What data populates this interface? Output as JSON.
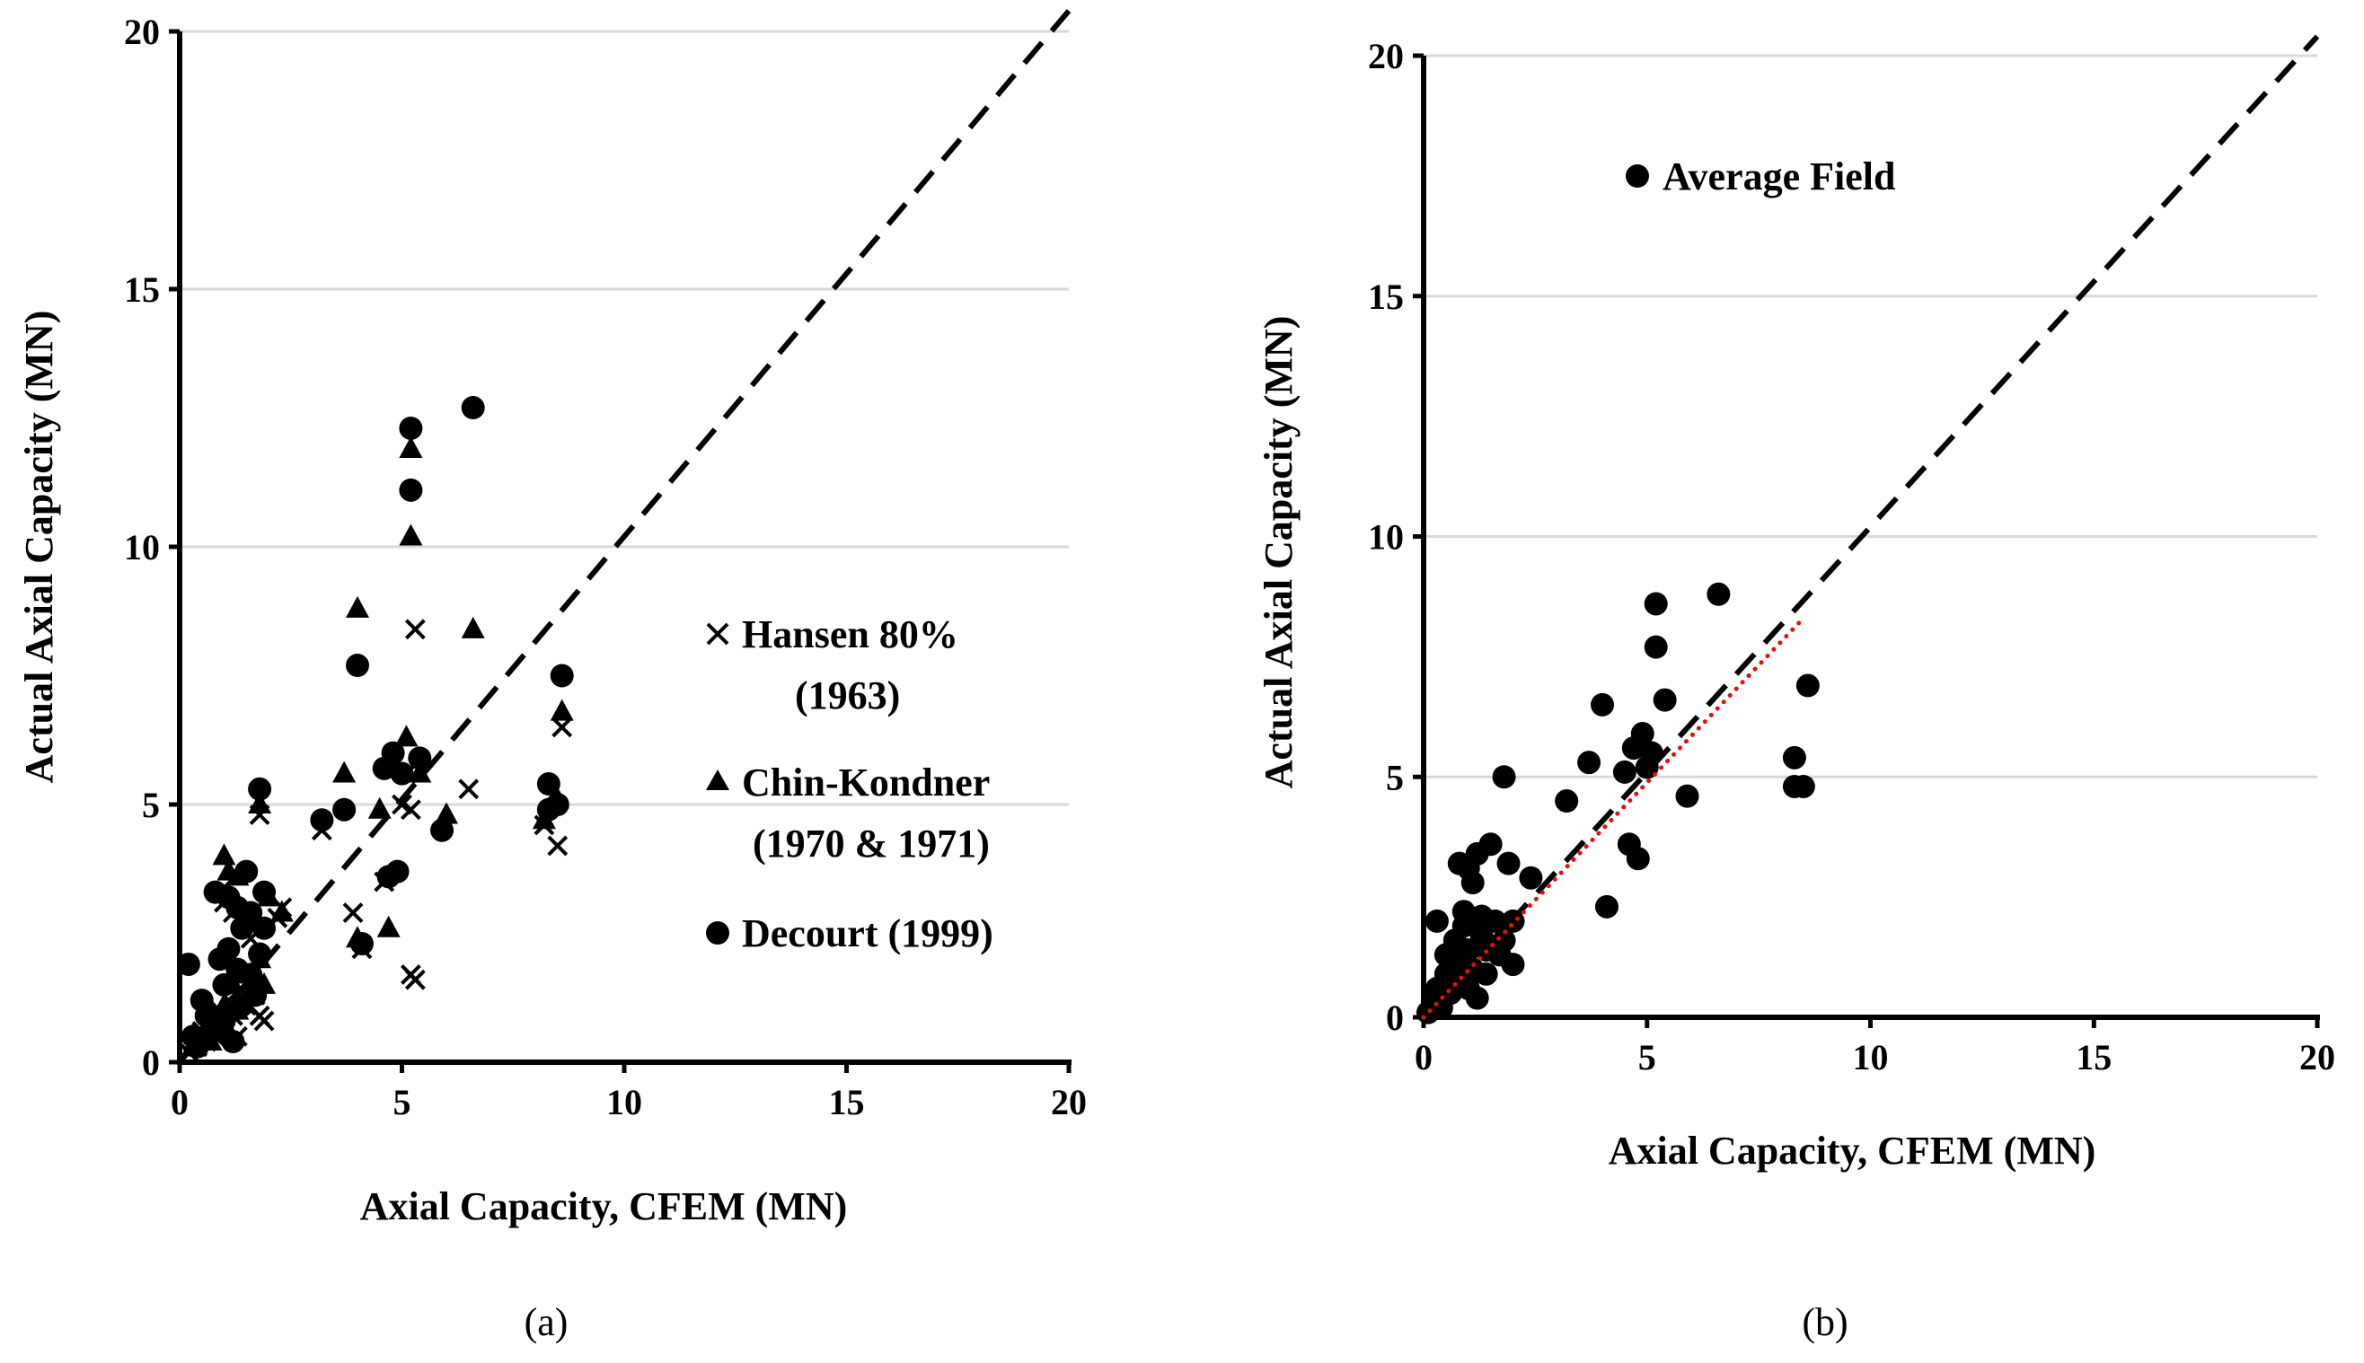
{
  "panels": [
    {
      "caption": "(a)",
      "xlabel": "Axial Capacity, CFEM (MN)",
      "ylabel": "Actual Axial Capacity (MN)",
      "legend": [
        {
          "marker": "cross",
          "lines": [
            "Hansen 80%",
            "(1963)"
          ]
        },
        {
          "marker": "triangle",
          "lines": [
            "Chin-Kondner",
            "(1970 & 1971)"
          ]
        },
        {
          "marker": "circle",
          "lines": [
            "Decourt (1999)"
          ]
        }
      ]
    },
    {
      "caption": "(b)",
      "xlabel": "Axial Capacity, CFEM (MN)",
      "ylabel": "Actual Axial Capacity (MN)",
      "legend": [
        {
          "marker": "circle",
          "lines": [
            "Average Field"
          ]
        }
      ]
    }
  ],
  "colors": {
    "marker": "#000000",
    "reference_line": "#000000",
    "fit_line": "#e01010",
    "grid": "#d9d9d9"
  },
  "chart_data": [
    {
      "type": "scatter",
      "xlim": [
        0,
        20
      ],
      "ylim": [
        0,
        20
      ],
      "xticks": [
        0,
        5,
        10,
        15,
        20
      ],
      "yticks": [
        0,
        5,
        10,
        15,
        20
      ],
      "grid": "horizontal",
      "legend_position": "right-middle",
      "reference_line": {
        "style": "dashed",
        "x": [
          0,
          20
        ],
        "y": [
          0,
          20.4
        ]
      },
      "series": [
        {
          "name": "Hansen 80% (1963)",
          "marker": "cross",
          "points": [
            [
              0.2,
              0.2
            ],
            [
              0.3,
              0.4
            ],
            [
              0.4,
              0.3
            ],
            [
              0.5,
              0.6
            ],
            [
              0.6,
              0.4
            ],
            [
              0.7,
              0.8
            ],
            [
              0.8,
              0.5
            ],
            [
              0.9,
              1.0
            ],
            [
              1.0,
              0.7
            ],
            [
              1.1,
              1.2
            ],
            [
              1.2,
              0.9
            ],
            [
              1.3,
              0.5
            ],
            [
              1.4,
              1.4
            ],
            [
              1.5,
              1.1
            ],
            [
              1.6,
              1.6
            ],
            [
              1.7,
              1.3
            ],
            [
              1.8,
              0.9
            ],
            [
              1.9,
              0.8
            ],
            [
              1.0,
              3.1
            ],
            [
              1.2,
              2.9
            ],
            [
              0.9,
              3.3
            ],
            [
              1.6,
              2.4
            ],
            [
              1.8,
              4.8
            ],
            [
              2.2,
              2.8
            ],
            [
              2.3,
              3.0
            ],
            [
              3.2,
              4.5
            ],
            [
              3.9,
              2.9
            ],
            [
              4.1,
              2.2
            ],
            [
              4.6,
              3.5
            ],
            [
              5.0,
              5.0
            ],
            [
              5.1,
              5.6
            ],
            [
              5.2,
              4.9
            ],
            [
              5.2,
              1.7
            ],
            [
              5.3,
              1.6
            ],
            [
              5.3,
              8.4
            ],
            [
              6.5,
              5.3
            ],
            [
              8.2,
              4.6
            ],
            [
              8.5,
              4.2
            ],
            [
              8.6,
              6.5
            ]
          ]
        },
        {
          "name": "Chin-Kondner (1970 & 1971)",
          "marker": "triangle",
          "points": [
            [
              0.3,
              0.3
            ],
            [
              0.5,
              0.5
            ],
            [
              0.7,
              0.4
            ],
            [
              0.8,
              0.9
            ],
            [
              1.0,
              1.1
            ],
            [
              1.1,
              0.6
            ],
            [
              1.2,
              1.5
            ],
            [
              1.3,
              1.0
            ],
            [
              1.5,
              1.7
            ],
            [
              1.6,
              1.3
            ],
            [
              1.8,
              2.0
            ],
            [
              1.9,
              1.5
            ],
            [
              1.0,
              4.0
            ],
            [
              1.1,
              3.7
            ],
            [
              1.3,
              3.6
            ],
            [
              1.8,
              5.0
            ],
            [
              2.0,
              3.2
            ],
            [
              2.3,
              2.9
            ],
            [
              3.7,
              5.6
            ],
            [
              4.0,
              8.8
            ],
            [
              4.0,
              2.4
            ],
            [
              4.5,
              4.9
            ],
            [
              4.7,
              2.6
            ],
            [
              4.8,
              5.7
            ],
            [
              5.1,
              6.3
            ],
            [
              5.2,
              11.9
            ],
            [
              5.2,
              10.2
            ],
            [
              5.4,
              5.6
            ],
            [
              6.0,
              4.8
            ],
            [
              6.6,
              8.4
            ],
            [
              8.2,
              4.7
            ],
            [
              8.5,
              5.1
            ],
            [
              8.6,
              6.8
            ]
          ]
        },
        {
          "name": "Decourt (1999)",
          "marker": "circle",
          "points": [
            [
              0.2,
              1.9
            ],
            [
              0.3,
              0.5
            ],
            [
              0.4,
              0.3
            ],
            [
              0.5,
              1.2
            ],
            [
              0.6,
              0.9
            ],
            [
              0.7,
              0.6
            ],
            [
              0.8,
              3.3
            ],
            [
              0.9,
              2.0
            ],
            [
              1.0,
              1.5
            ],
            [
              1.0,
              0.8
            ],
            [
              1.1,
              2.2
            ],
            [
              1.1,
              3.2
            ],
            [
              1.2,
              0.4
            ],
            [
              1.3,
              1.8
            ],
            [
              1.3,
              3.0
            ],
            [
              1.4,
              2.6
            ],
            [
              1.4,
              1.1
            ],
            [
              1.5,
              3.7
            ],
            [
              1.6,
              1.7
            ],
            [
              1.6,
              2.9
            ],
            [
              1.7,
              1.3
            ],
            [
              1.8,
              2.1
            ],
            [
              1.8,
              5.3
            ],
            [
              1.9,
              3.3
            ],
            [
              1.9,
              2.6
            ],
            [
              3.2,
              4.7
            ],
            [
              3.7,
              4.9
            ],
            [
              4.0,
              7.7
            ],
            [
              4.1,
              2.3
            ],
            [
              4.6,
              5.7
            ],
            [
              4.7,
              3.6
            ],
            [
              4.8,
              6.0
            ],
            [
              4.9,
              3.7
            ],
            [
              5.0,
              5.6
            ],
            [
              5.2,
              12.3
            ],
            [
              5.2,
              11.1
            ],
            [
              5.4,
              5.9
            ],
            [
              5.9,
              4.5
            ],
            [
              6.6,
              12.7
            ],
            [
              8.3,
              4.9
            ],
            [
              8.3,
              5.4
            ],
            [
              8.5,
              5.0
            ],
            [
              8.6,
              7.5
            ]
          ]
        }
      ]
    },
    {
      "type": "scatter",
      "xlim": [
        0,
        20
      ],
      "ylim": [
        0,
        20
      ],
      "xticks": [
        0,
        5,
        10,
        15,
        20
      ],
      "yticks": [
        0,
        5,
        10,
        15,
        20
      ],
      "grid": "horizontal",
      "legend_position": "top-left",
      "reference_line": {
        "style": "dashed",
        "x": [
          0,
          20
        ],
        "y": [
          0,
          20.4
        ]
      },
      "fit_line": {
        "style": "dotted",
        "x": [
          0,
          8.5
        ],
        "y": [
          0,
          8.3
        ]
      },
      "series": [
        {
          "name": "Average Field",
          "marker": "circle",
          "points": [
            [
              0.1,
              0.1
            ],
            [
              0.2,
              0.3
            ],
            [
              0.3,
              2.0
            ],
            [
              0.3,
              0.6
            ],
            [
              0.4,
              0.2
            ],
            [
              0.5,
              0.9
            ],
            [
              0.5,
              1.3
            ],
            [
              0.6,
              0.5
            ],
            [
              0.7,
              1.6
            ],
            [
              0.7,
              0.8
            ],
            [
              0.8,
              3.2
            ],
            [
              0.8,
              1.1
            ],
            [
              0.9,
              2.2
            ],
            [
              0.9,
              1.9
            ],
            [
              1.0,
              1.4
            ],
            [
              1.0,
              3.1
            ],
            [
              1.0,
              0.6
            ],
            [
              1.1,
              2.8
            ],
            [
              1.1,
              1.0
            ],
            [
              1.2,
              3.4
            ],
            [
              1.2,
              0.4
            ],
            [
              1.3,
              1.7
            ],
            [
              1.3,
              2.1
            ],
            [
              1.4,
              0.9
            ],
            [
              1.4,
              1.4
            ],
            [
              1.5,
              3.6
            ],
            [
              1.6,
              2.0
            ],
            [
              1.7,
              1.3
            ],
            [
              1.8,
              1.6
            ],
            [
              1.8,
              5.0
            ],
            [
              1.9,
              3.2
            ],
            [
              2.0,
              1.1
            ],
            [
              2.0,
              2.0
            ],
            [
              2.4,
              2.9
            ],
            [
              3.2,
              4.5
            ],
            [
              3.7,
              5.3
            ],
            [
              4.0,
              6.5
            ],
            [
              4.1,
              2.3
            ],
            [
              4.5,
              5.1
            ],
            [
              4.6,
              3.6
            ],
            [
              4.7,
              5.6
            ],
            [
              4.8,
              3.3
            ],
            [
              4.9,
              5.9
            ],
            [
              5.0,
              5.2
            ],
            [
              5.1,
              5.5
            ],
            [
              5.2,
              7.7
            ],
            [
              5.2,
              8.6
            ],
            [
              5.4,
              6.6
            ],
            [
              5.9,
              4.6
            ],
            [
              6.6,
              8.8
            ],
            [
              8.3,
              5.4
            ],
            [
              8.3,
              4.8
            ],
            [
              8.5,
              4.8
            ],
            [
              8.6,
              6.9
            ]
          ]
        }
      ]
    }
  ]
}
